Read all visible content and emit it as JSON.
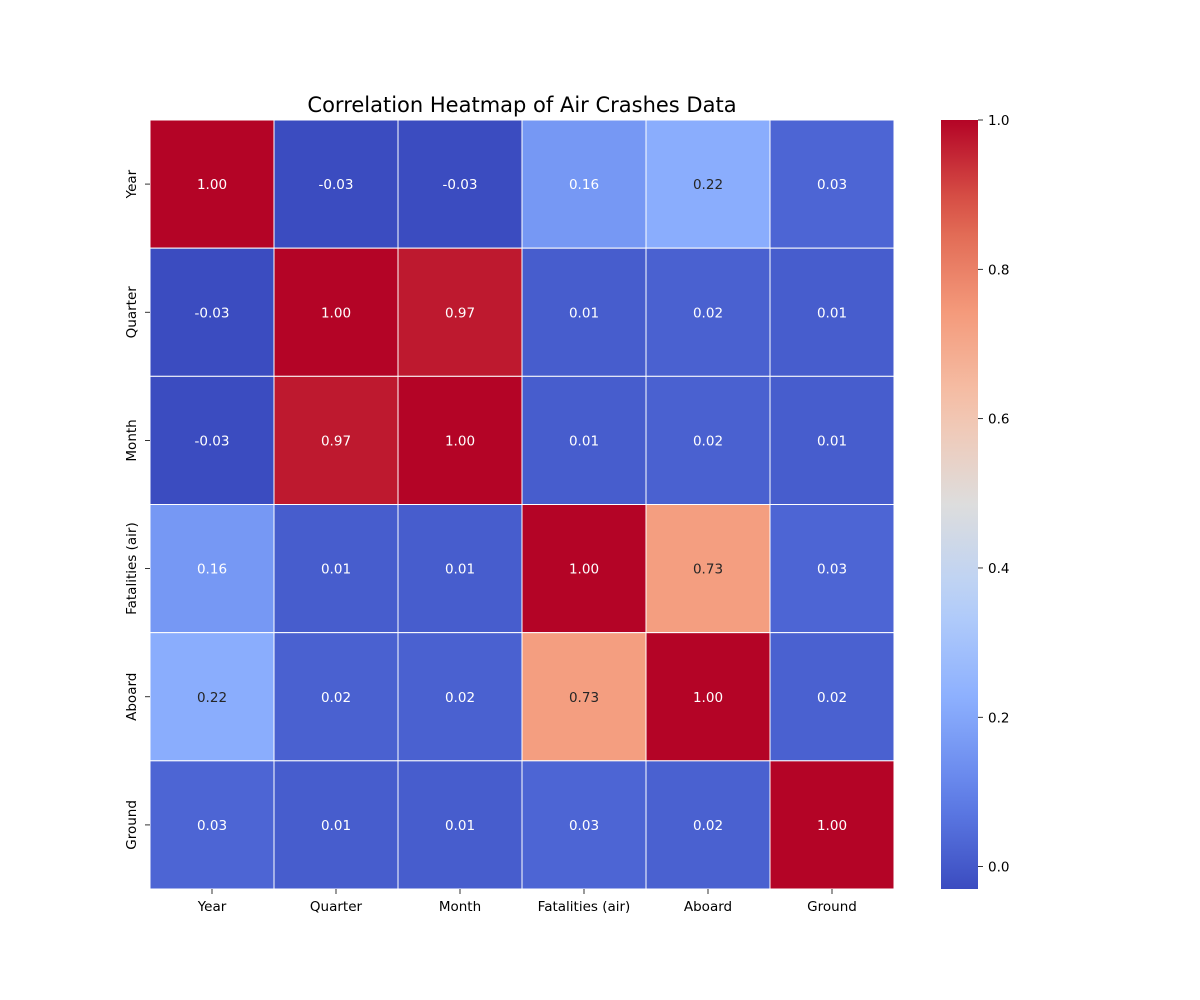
{
  "chart_data": {
    "type": "heatmap",
    "title": "Correlation Heatmap of Air Crashes Data",
    "x_categories": [
      "Year",
      "Quarter",
      "Month",
      "Fatalities (air)",
      "Aboard",
      "Ground"
    ],
    "y_categories": [
      "Year",
      "Quarter",
      "Month",
      "Fatalities (air)",
      "Aboard",
      "Ground"
    ],
    "values": [
      [
        1.0,
        -0.03,
        -0.03,
        0.16,
        0.22,
        0.03
      ],
      [
        -0.03,
        1.0,
        0.97,
        0.01,
        0.02,
        0.01
      ],
      [
        -0.03,
        0.97,
        1.0,
        0.01,
        0.02,
        0.01
      ],
      [
        0.16,
        0.01,
        0.01,
        1.0,
        0.73,
        0.03
      ],
      [
        0.22,
        0.02,
        0.02,
        0.73,
        1.0,
        0.02
      ],
      [
        0.03,
        0.01,
        0.01,
        0.03,
        0.02,
        1.0
      ]
    ],
    "value_format": "2 decimals",
    "colormap": "coolwarm",
    "colorbar": {
      "min": -0.03,
      "max": 1.0,
      "ticks": [
        0.0,
        0.2,
        0.4,
        0.6,
        0.8,
        1.0
      ],
      "tick_labels": [
        "0.0",
        "0.2",
        "0.4",
        "0.6",
        "0.8",
        "1.0"
      ],
      "placement": "right"
    },
    "cell_border_color": "#ffffff"
  }
}
